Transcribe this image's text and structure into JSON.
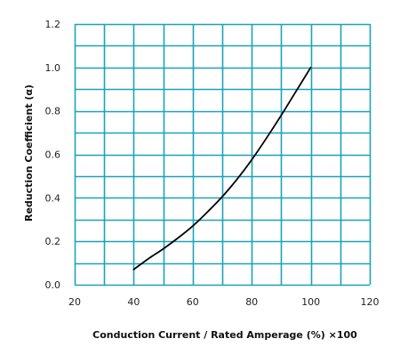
{
  "chart_data": {
    "type": "line",
    "title": "",
    "xlabel": "Conduction Current / Rated Amperage (%) ×100",
    "ylabel": "Reduction Coefficient (α)",
    "xlim": [
      20,
      120
    ],
    "ylim": [
      0.0,
      1.2
    ],
    "x_ticks": [
      20,
      40,
      60,
      80,
      100,
      120
    ],
    "y_ticks": [
      0.0,
      0.2,
      0.4,
      0.6,
      0.8,
      1.0,
      1.2
    ],
    "x_tick_labels": [
      "20",
      "40",
      "60",
      "80",
      "100",
      "120"
    ],
    "y_tick_labels": [
      "0.0",
      "0.2",
      "0.4",
      "0.6",
      "0.8",
      "1.0",
      "1.2"
    ],
    "grid_x_step": 10,
    "grid_y_step": 0.1,
    "grid": true,
    "grid_color": "#1aa3b8",
    "line_color": "#000000",
    "series": [
      {
        "x": [
          40,
          45,
          50,
          55,
          60,
          65,
          70,
          75,
          80,
          85,
          90,
          95,
          100
        ],
        "y": [
          0.07,
          0.12,
          0.165,
          0.215,
          0.27,
          0.335,
          0.405,
          0.485,
          0.575,
          0.675,
          0.78,
          0.89,
          1.0
        ]
      }
    ]
  }
}
